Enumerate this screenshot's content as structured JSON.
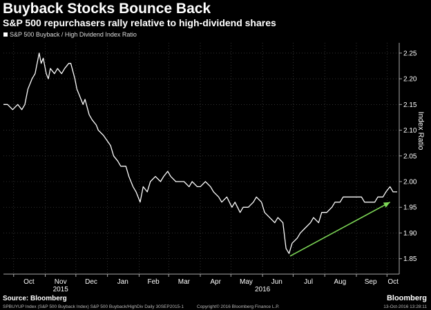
{
  "chart_data": {
    "type": "line",
    "title": "Buyback Stocks Bounce Back",
    "subtitle": "S&P 500 repurchasers rally relative to high-dividend shares",
    "legend": "S&P 500 Buyback / High Dividend Index Ratio",
    "ylabel": "Index Ratio",
    "ylim": [
      1.82,
      2.27
    ],
    "y_ticks": [
      "2.25",
      "2.20",
      "2.15",
      "2.10",
      "2.05",
      "2.00",
      "1.95",
      "1.90",
      "1.85"
    ],
    "x_ticks": [
      "Oct",
      "Nov",
      "Dec",
      "Jan",
      "Feb",
      "Mar",
      "Apr",
      "May",
      "Jun",
      "Jul",
      "Aug",
      "Sep",
      "Oct"
    ],
    "year_labels": [
      "2015",
      "2016"
    ],
    "x_range": [
      "2015-09-21",
      "2016-10-13"
    ],
    "series": [
      {
        "color": "#ffffff",
        "points": [
          [
            "2015-09-21",
            2.15
          ],
          [
            "2015-09-25",
            2.15
          ],
          [
            "2015-09-30",
            2.14
          ],
          [
            "2015-10-05",
            2.15
          ],
          [
            "2015-10-09",
            2.14
          ],
          [
            "2015-10-12",
            2.15
          ],
          [
            "2015-10-15",
            2.18
          ],
          [
            "2015-10-19",
            2.2
          ],
          [
            "2015-10-22",
            2.21
          ],
          [
            "2015-10-26",
            2.25
          ],
          [
            "2015-10-28",
            2.23
          ],
          [
            "2015-10-30",
            2.24
          ],
          [
            "2015-11-02",
            2.21
          ],
          [
            "2015-11-04",
            2.2
          ],
          [
            "2015-11-06",
            2.22
          ],
          [
            "2015-11-10",
            2.21
          ],
          [
            "2015-11-13",
            2.22
          ],
          [
            "2015-11-17",
            2.21
          ],
          [
            "2015-11-20",
            2.22
          ],
          [
            "2015-11-24",
            2.23
          ],
          [
            "2015-11-26",
            2.23
          ],
          [
            "2015-11-30",
            2.2
          ],
          [
            "2015-12-02",
            2.18
          ],
          [
            "2015-12-04",
            2.17
          ],
          [
            "2015-12-08",
            2.15
          ],
          [
            "2015-12-10",
            2.16
          ],
          [
            "2015-12-14",
            2.13
          ],
          [
            "2015-12-17",
            2.12
          ],
          [
            "2015-12-21",
            2.11
          ],
          [
            "2015-12-23",
            2.1
          ],
          [
            "2015-12-28",
            2.09
          ],
          [
            "2016-01-04",
            2.07
          ],
          [
            "2016-01-07",
            2.05
          ],
          [
            "2016-01-11",
            2.04
          ],
          [
            "2016-01-14",
            2.03
          ],
          [
            "2016-01-19",
            2.03
          ],
          [
            "2016-01-22",
            2.01
          ],
          [
            "2016-01-26",
            1.99
          ],
          [
            "2016-01-29",
            1.98
          ],
          [
            "2016-02-02",
            1.96
          ],
          [
            "2016-02-05",
            1.99
          ],
          [
            "2016-02-09",
            1.98
          ],
          [
            "2016-02-12",
            2.0
          ],
          [
            "2016-02-17",
            2.01
          ],
          [
            "2016-02-22",
            2.0
          ],
          [
            "2016-02-25",
            2.01
          ],
          [
            "2016-02-29",
            2.02
          ],
          [
            "2016-03-03",
            2.01
          ],
          [
            "2016-03-08",
            2.0
          ],
          [
            "2016-03-11",
            2.0
          ],
          [
            "2016-03-16",
            2.0
          ],
          [
            "2016-03-21",
            1.99
          ],
          [
            "2016-03-24",
            2.0
          ],
          [
            "2016-03-29",
            1.99
          ],
          [
            "2016-04-01",
            1.99
          ],
          [
            "2016-04-06",
            2.0
          ],
          [
            "2016-04-11",
            1.99
          ],
          [
            "2016-04-14",
            1.98
          ],
          [
            "2016-04-19",
            1.97
          ],
          [
            "2016-04-22",
            1.96
          ],
          [
            "2016-04-27",
            1.97
          ],
          [
            "2016-05-02",
            1.95
          ],
          [
            "2016-05-05",
            1.96
          ],
          [
            "2016-05-10",
            1.94
          ],
          [
            "2016-05-13",
            1.95
          ],
          [
            "2016-05-18",
            1.95
          ],
          [
            "2016-05-23",
            1.96
          ],
          [
            "2016-05-26",
            1.97
          ],
          [
            "2016-05-31",
            1.96
          ],
          [
            "2016-06-03",
            1.94
          ],
          [
            "2016-06-08",
            1.93
          ],
          [
            "2016-06-13",
            1.92
          ],
          [
            "2016-06-16",
            1.93
          ],
          [
            "2016-06-21",
            1.92
          ],
          [
            "2016-06-24",
            1.87
          ],
          [
            "2016-06-27",
            1.86
          ],
          [
            "2016-06-30",
            1.88
          ],
          [
            "2016-07-05",
            1.89
          ],
          [
            "2016-07-08",
            1.9
          ],
          [
            "2016-07-13",
            1.91
          ],
          [
            "2016-07-18",
            1.92
          ],
          [
            "2016-07-21",
            1.93
          ],
          [
            "2016-07-26",
            1.92
          ],
          [
            "2016-07-29",
            1.94
          ],
          [
            "2016-08-03",
            1.94
          ],
          [
            "2016-08-08",
            1.95
          ],
          [
            "2016-08-11",
            1.96
          ],
          [
            "2016-08-16",
            1.96
          ],
          [
            "2016-08-19",
            1.97
          ],
          [
            "2016-08-24",
            1.97
          ],
          [
            "2016-08-29",
            1.97
          ],
          [
            "2016-09-01",
            1.97
          ],
          [
            "2016-09-06",
            1.97
          ],
          [
            "2016-09-09",
            1.96
          ],
          [
            "2016-09-14",
            1.96
          ],
          [
            "2016-09-19",
            1.96
          ],
          [
            "2016-09-22",
            1.97
          ],
          [
            "2016-09-27",
            1.97
          ],
          [
            "2016-09-30",
            1.98
          ],
          [
            "2016-10-04",
            1.99
          ],
          [
            "2016-10-07",
            1.98
          ],
          [
            "2016-10-11",
            1.98
          ]
        ]
      }
    ],
    "annotation": {
      "type": "arrow",
      "color": "#7ed957",
      "from": [
        "2016-06-28",
        1.855
      ],
      "to": [
        "2016-10-04",
        1.96
      ]
    },
    "grid": true
  },
  "footer": {
    "source": "Source: Bloomberg",
    "brand": "Bloomberg",
    "left": "SPBUYUP Index (S&P 500 Buyback Index) S&P 500 Buyback/HighDiv  Daily 30SEP2015-1",
    "mid": "Copyright© 2016 Bloomberg Finance L.P.",
    "right": "13-Oct-2016 13:28:11"
  }
}
